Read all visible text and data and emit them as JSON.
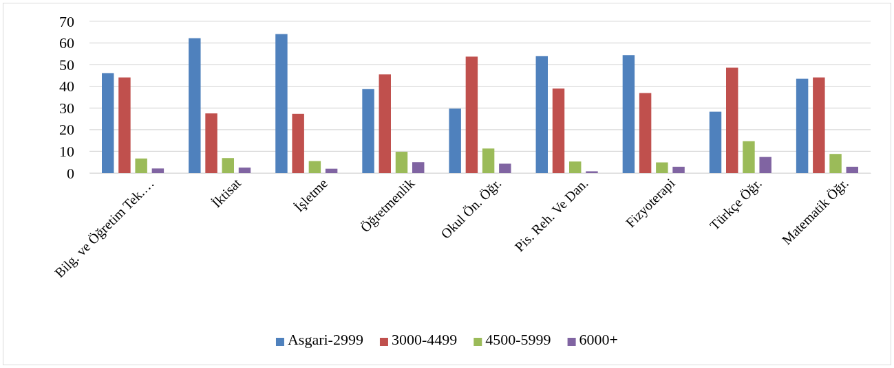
{
  "chart_data": {
    "type": "bar",
    "categories": [
      "Bilg. ve Öğretim Tek.…",
      "İktisat",
      "İşletme",
      "Öğretmenlik",
      "Okul Ön. Öğr.",
      "Pis. Reh. Ve Dan.",
      "Fizyoterapi",
      "Türkçe Öğr.",
      "Matematik Öğr."
    ],
    "series": [
      {
        "name": "Asgari-2999",
        "color": "#4f81bd",
        "values": [
          46.1,
          62.2,
          64.1,
          38.7,
          29.7,
          53.9,
          54.4,
          28.3,
          43.5
        ]
      },
      {
        "name": "3000-4499",
        "color": "#c0504d",
        "values": [
          44.1,
          27.5,
          27.3,
          45.5,
          53.7,
          39.0,
          36.9,
          48.6,
          44.1
        ]
      },
      {
        "name": "4500-5999",
        "color": "#9bbb59",
        "values": [
          6.7,
          6.9,
          5.5,
          9.8,
          11.3,
          5.3,
          4.9,
          14.7,
          8.8
        ]
      },
      {
        "name": "6000+",
        "color": "#8064a2",
        "values": [
          2.1,
          2.5,
          2.0,
          5.0,
          4.3,
          0.8,
          2.9,
          7.4,
          2.9
        ]
      }
    ],
    "ylim": [
      0,
      70
    ],
    "yticks": [
      0,
      10,
      20,
      30,
      40,
      50,
      60,
      70
    ],
    "grid": "y",
    "legend": "bottom"
  }
}
